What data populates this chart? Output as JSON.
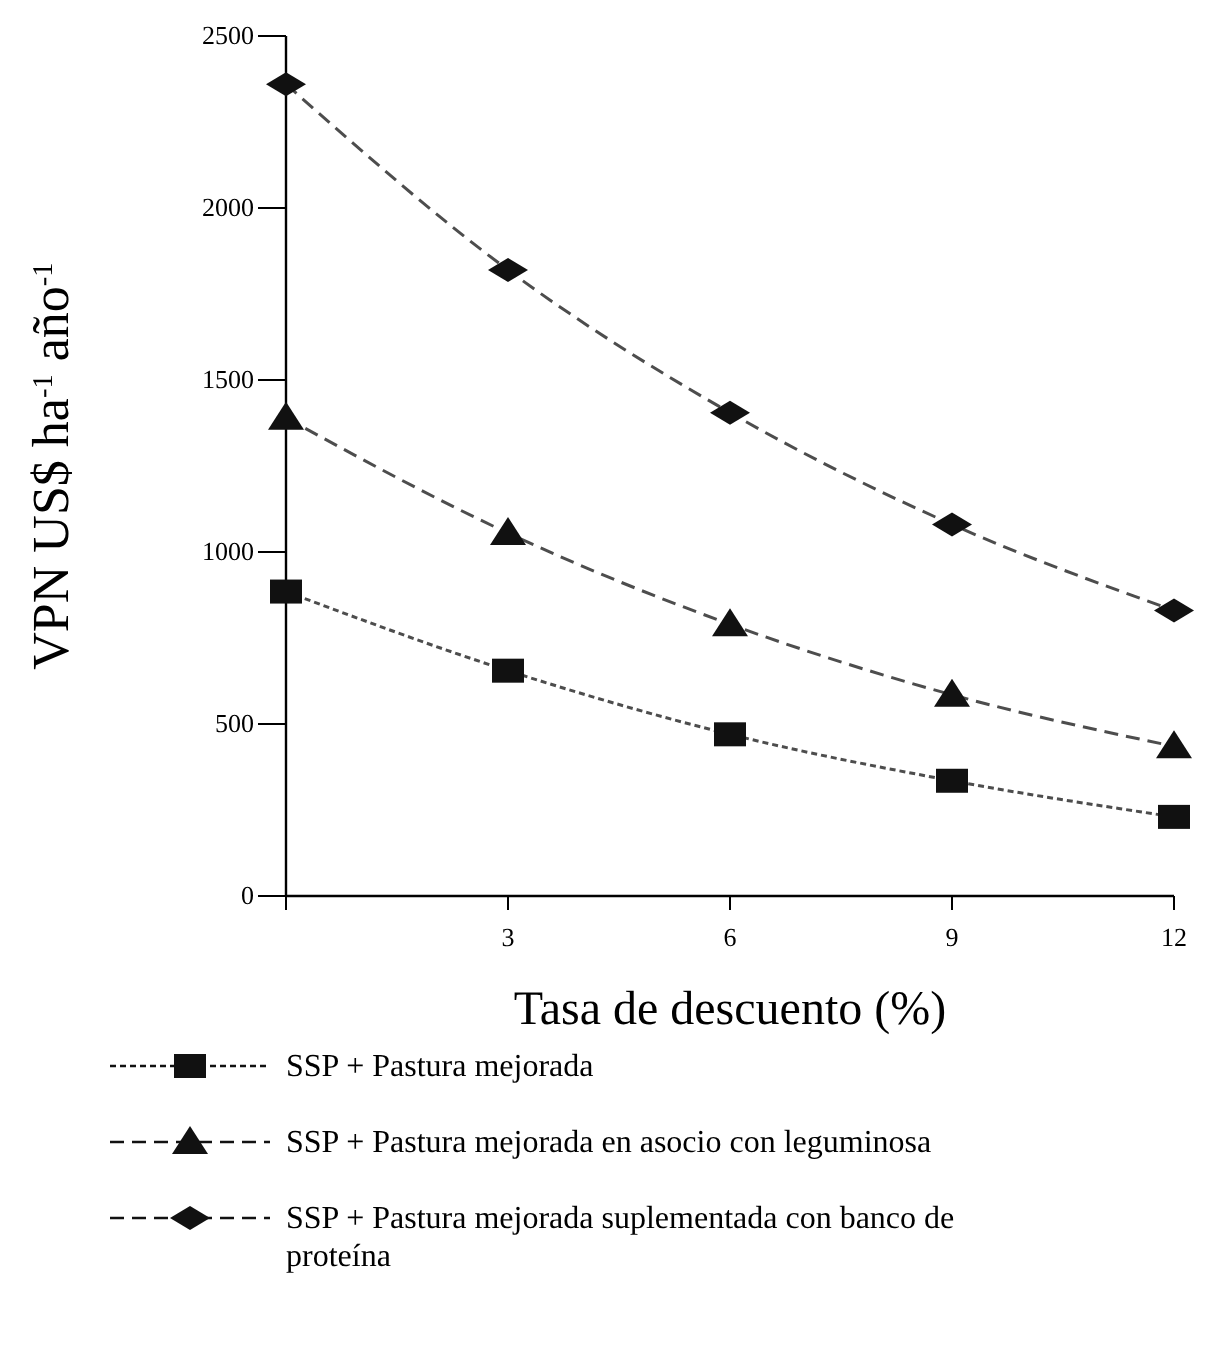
{
  "chart_data": {
    "type": "line",
    "xlabel": "Tasa de descuento (%)",
    "ylabel": "VPN US$ ha$^{-1}$ año$^{-1}$",
    "x": [
      0,
      3,
      6,
      9,
      12
    ],
    "xlim": [
      0,
      12
    ],
    "xticks": [
      {
        "value": 0,
        "label": null
      },
      3,
      6,
      9,
      12
    ],
    "ylim": [
      0,
      2500
    ],
    "yticks": [
      0,
      500,
      1000,
      1500,
      2000,
      2500
    ],
    "grid": false,
    "legend": "bottom",
    "series": [
      {
        "name": "SSP + Pastura mejorada",
        "color": "#111111",
        "values": [
          885,
          655,
          470,
          335,
          230
        ],
        "marker": "square",
        "line_style": "dotted"
      },
      {
        "name": "SSP + Pastura mejorada en asocio con leguminosa",
        "color": "#111111",
        "values": [
          1390,
          1055,
          790,
          585,
          435
        ],
        "marker": "triangle",
        "line_style": "dashed"
      },
      {
        "name": "SSP + Pastura mejorada suplementada con banco de proteína",
        "color": "#111111",
        "values": [
          2360,
          1820,
          1405,
          1080,
          830
        ],
        "marker": "diamond",
        "line_style": "dashed"
      }
    ]
  }
}
